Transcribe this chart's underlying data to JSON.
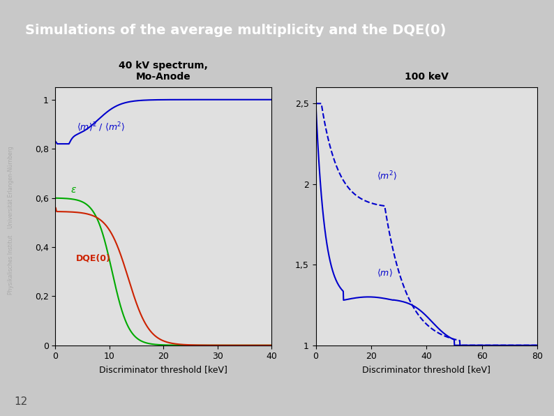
{
  "title": "Simulations of the average multiplicity and the DQE(0)",
  "title_bg": "#3a6f9e",
  "title_color": "white",
  "slide_bg": "#c8c8c8",
  "footer_text": "12",
  "sidebar_text": "Physikalisches Institut    Universität Erlangen-Nürnberg",
  "plot1_title": "40 kV spectrum,\nMo-Anode",
  "plot2_title": "100 keV",
  "xlabel": "Discriminator threshold [keV]",
  "plot1_xlim": [
    0,
    40
  ],
  "plot1_ylim": [
    0,
    1.05
  ],
  "plot1_yticks": [
    0,
    0.2,
    0.4,
    0.6,
    0.8,
    1
  ],
  "plot1_ytick_labels": [
    "0",
    "0,2",
    "0,4",
    "0,6",
    "0,8",
    "1"
  ],
  "plot1_xticks": [
    0,
    10,
    20,
    30,
    40
  ],
  "plot2_xlim": [
    0,
    80
  ],
  "plot2_ylim": [
    1.0,
    2.6
  ],
  "plot2_yticks": [
    1.0,
    1.5,
    2.0,
    2.5
  ],
  "plot2_ytick_labels": [
    "1",
    "1,5",
    "2",
    "2,5"
  ],
  "plot2_xticks": [
    0,
    20,
    40,
    60,
    80
  ],
  "blue_color": "#0000cc",
  "red_color": "#cc2200",
  "green_color": "#00aa00"
}
